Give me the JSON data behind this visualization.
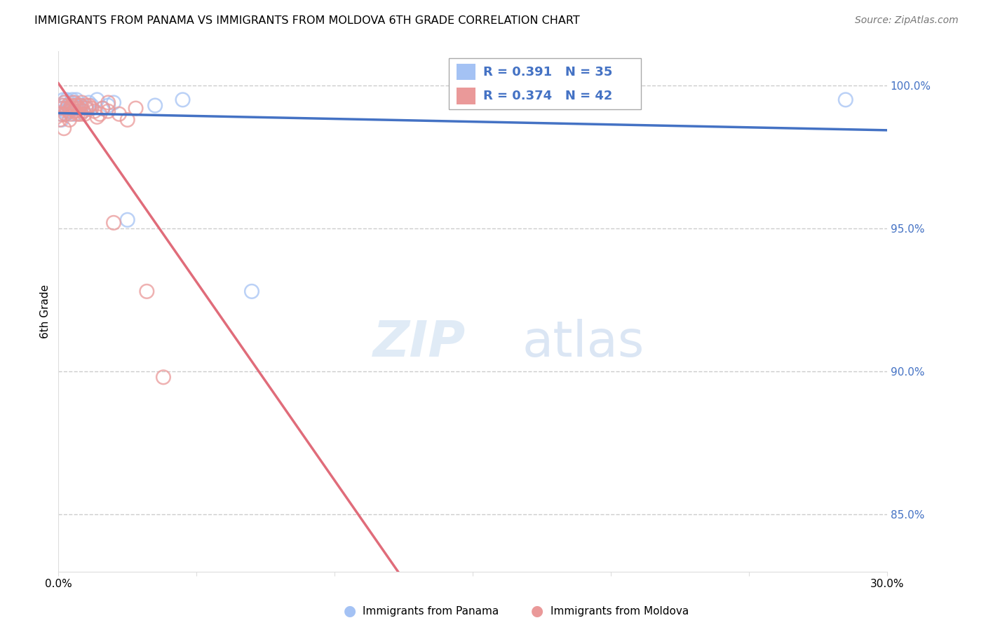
{
  "title": "IMMIGRANTS FROM PANAMA VS IMMIGRANTS FROM MOLDOVA 6TH GRADE CORRELATION CHART",
  "source": "Source: ZipAtlas.com",
  "ylabel": "6th Grade",
  "y_ticks": [
    85.0,
    90.0,
    95.0,
    100.0
  ],
  "y_tick_labels": [
    "85.0%",
    "90.0%",
    "95.0%",
    "100.0%"
  ],
  "legend1_label": "Immigrants from Panama",
  "legend2_label": "Immigrants from Moldova",
  "r1": 0.391,
  "n1": 35,
  "r2": 0.374,
  "n2": 42,
  "color_panama": "#a4c2f4",
  "color_moldova": "#ea9999",
  "line_color_panama": "#4472c4",
  "line_color_moldova": "#e06c7a",
  "xlim": [
    0,
    30
  ],
  "ylim": [
    83.0,
    101.2
  ],
  "panama_x": [
    0.05,
    0.1,
    0.15,
    0.18,
    0.22,
    0.25,
    0.3,
    0.35,
    0.4,
    0.45,
    0.5,
    0.55,
    0.6,
    0.65,
    0.7,
    0.8,
    0.9,
    1.0,
    1.1,
    1.2,
    1.4,
    1.6,
    1.8,
    2.0,
    2.5,
    3.5,
    4.5,
    7.0,
    16.5,
    28.5,
    0.12,
    0.28,
    0.42,
    0.58,
    0.72
  ],
  "panama_y": [
    99.2,
    99.0,
    99.3,
    99.5,
    99.4,
    99.1,
    99.5,
    99.3,
    99.2,
    99.4,
    99.5,
    99.3,
    99.4,
    99.5,
    99.2,
    99.3,
    99.1,
    99.2,
    99.4,
    99.3,
    99.5,
    99.2,
    99.3,
    99.4,
    95.3,
    99.3,
    99.5,
    92.8,
    99.5,
    99.5,
    98.8,
    99.0,
    99.1,
    99.0,
    99.2
  ],
  "moldova_x": [
    0.05,
    0.1,
    0.15,
    0.18,
    0.22,
    0.25,
    0.3,
    0.35,
    0.38,
    0.42,
    0.45,
    0.48,
    0.52,
    0.55,
    0.6,
    0.65,
    0.7,
    0.75,
    0.8,
    0.85,
    0.9,
    0.95,
    1.0,
    1.1,
    1.2,
    1.3,
    1.4,
    1.5,
    1.6,
    1.8,
    2.0,
    2.2,
    2.5,
    2.8,
    3.2,
    3.8,
    0.2,
    0.4,
    0.6,
    0.8,
    1.0,
    1.8
  ],
  "moldova_y": [
    98.8,
    99.0,
    99.2,
    99.3,
    99.4,
    99.0,
    99.2,
    99.3,
    99.1,
    99.2,
    99.0,
    99.3,
    99.2,
    99.4,
    99.1,
    99.3,
    99.0,
    99.2,
    99.3,
    99.4,
    99.1,
    99.0,
    99.2,
    99.3,
    99.2,
    99.1,
    98.9,
    99.0,
    99.2,
    99.1,
    95.2,
    99.0,
    98.8,
    99.2,
    92.8,
    89.8,
    98.5,
    98.8,
    99.1,
    99.0,
    99.3,
    99.4
  ],
  "watermark_zip": "ZIP",
  "watermark_atlas": "atlas",
  "trendline_x_start": 0.0,
  "trendline_x_end": 30.0
}
